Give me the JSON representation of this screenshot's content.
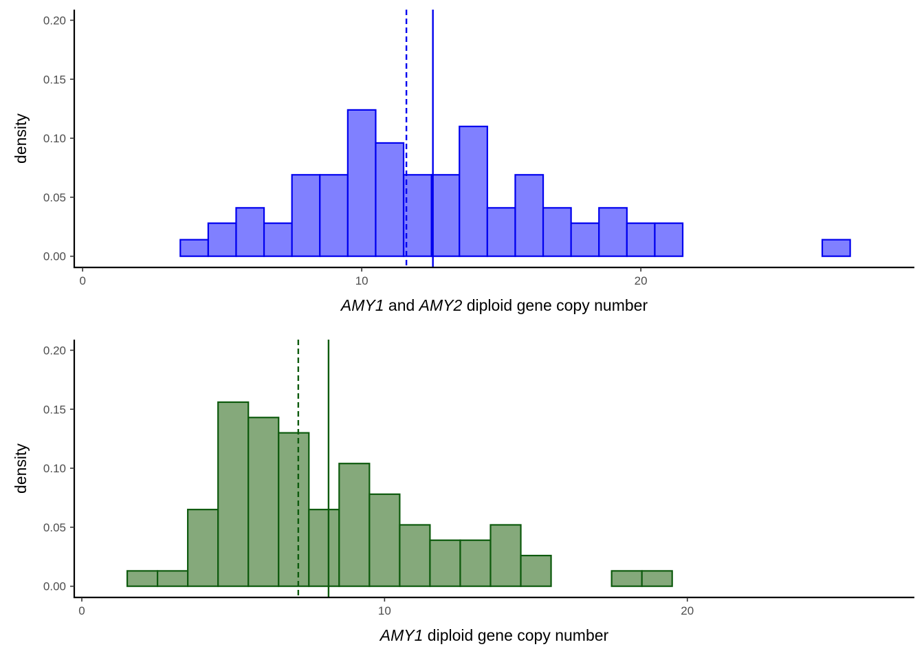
{
  "chart_data": [
    {
      "type": "histogram",
      "ylabel": "density",
      "xlabel_parts": [
        {
          "text": "AMY1",
          "italic": true
        },
        {
          "text": " and ",
          "italic": false
        },
        {
          "text": "AMY2",
          "italic": true
        },
        {
          "text": " diploid gene copy number",
          "italic": false
        }
      ],
      "xlim": [
        -0.3,
        29.8
      ],
      "ylim": [
        -0.0095,
        0.209
      ],
      "x_ticks": [
        0,
        10,
        20
      ],
      "y_ticks": [
        0.0,
        0.05,
        0.1,
        0.15,
        0.2
      ],
      "y_tick_labels": [
        "0.00",
        "0.05",
        "0.10",
        "0.15",
        "0.20"
      ],
      "grid": false,
      "bin_width": 1,
      "bins": [
        {
          "x0": 1.5,
          "density": 0.0
        },
        {
          "x0": 2.5,
          "density": 0.0
        },
        {
          "x0": 3.5,
          "density": 0.014
        },
        {
          "x0": 4.5,
          "density": 0.028
        },
        {
          "x0": 5.5,
          "density": 0.041
        },
        {
          "x0": 6.5,
          "density": 0.028
        },
        {
          "x0": 7.5,
          "density": 0.069
        },
        {
          "x0": 8.5,
          "density": 0.069
        },
        {
          "x0": 9.5,
          "density": 0.124
        },
        {
          "x0": 10.5,
          "density": 0.096
        },
        {
          "x0": 11.5,
          "density": 0.069
        },
        {
          "x0": 12.5,
          "density": 0.069
        },
        {
          "x0": 13.5,
          "density": 0.11
        },
        {
          "x0": 14.5,
          "density": 0.041
        },
        {
          "x0": 15.5,
          "density": 0.069
        },
        {
          "x0": 16.5,
          "density": 0.041
        },
        {
          "x0": 17.5,
          "density": 0.028
        },
        {
          "x0": 18.5,
          "density": 0.041
        },
        {
          "x0": 19.5,
          "density": 0.028
        },
        {
          "x0": 20.5,
          "density": 0.028
        },
        {
          "x0": 21.5,
          "density": 0.0
        },
        {
          "x0": 22.5,
          "density": 0.0
        },
        {
          "x0": 23.5,
          "density": 0.0
        },
        {
          "x0": 24.5,
          "density": 0.0
        },
        {
          "x0": 25.5,
          "density": 0.0
        },
        {
          "x0": 26.5,
          "density": 0.014
        }
      ],
      "vlines": [
        {
          "x": 11.6,
          "style": "dashed"
        },
        {
          "x": 12.55,
          "style": "solid"
        }
      ],
      "fill_color": "#8080ff",
      "stroke_color": "#0000ee",
      "vline_color": "#0000ee"
    },
    {
      "type": "histogram",
      "ylabel": "density",
      "xlabel_parts": [
        {
          "text": "AMY1",
          "italic": true
        },
        {
          "text": " diploid gene copy number",
          "italic": false
        }
      ],
      "xlim": [
        -0.25,
        27.5
      ],
      "ylim": [
        -0.0095,
        0.209
      ],
      "x_ticks": [
        0,
        10,
        20
      ],
      "y_ticks": [
        0.0,
        0.05,
        0.1,
        0.15,
        0.2
      ],
      "y_tick_labels": [
        "0.00",
        "0.05",
        "0.10",
        "0.15",
        "0.20"
      ],
      "grid": false,
      "bin_width": 1,
      "bins": [
        {
          "x0": 1.5,
          "density": 0.013
        },
        {
          "x0": 2.5,
          "density": 0.013
        },
        {
          "x0": 3.5,
          "density": 0.065
        },
        {
          "x0": 4.5,
          "density": 0.156
        },
        {
          "x0": 5.5,
          "density": 0.143
        },
        {
          "x0": 6.5,
          "density": 0.13
        },
        {
          "x0": 7.5,
          "density": 0.065
        },
        {
          "x0": 8.5,
          "density": 0.104
        },
        {
          "x0": 9.5,
          "density": 0.078
        },
        {
          "x0": 10.5,
          "density": 0.052
        },
        {
          "x0": 11.5,
          "density": 0.039
        },
        {
          "x0": 12.5,
          "density": 0.039
        },
        {
          "x0": 13.5,
          "density": 0.052
        },
        {
          "x0": 14.5,
          "density": 0.026
        },
        {
          "x0": 15.5,
          "density": 0.0
        },
        {
          "x0": 16.5,
          "density": 0.0
        },
        {
          "x0": 17.5,
          "density": 0.013
        },
        {
          "x0": 18.5,
          "density": 0.013
        },
        {
          "x0": 19.5,
          "density": 0.0
        },
        {
          "x0": 20.5,
          "density": 0.0
        },
        {
          "x0": 21.5,
          "density": 0.0
        },
        {
          "x0": 22.5,
          "density": 0.0
        },
        {
          "x0": 23.5,
          "density": 0.0
        },
        {
          "x0": 24.5,
          "density": 0.0
        }
      ],
      "vlines": [
        {
          "x": 7.15,
          "style": "dashed"
        },
        {
          "x": 8.15,
          "style": "solid"
        }
      ],
      "fill_color": "#85a97b",
      "stroke_color": "#0d5a0d",
      "vline_color": "#0d5a0d"
    }
  ]
}
